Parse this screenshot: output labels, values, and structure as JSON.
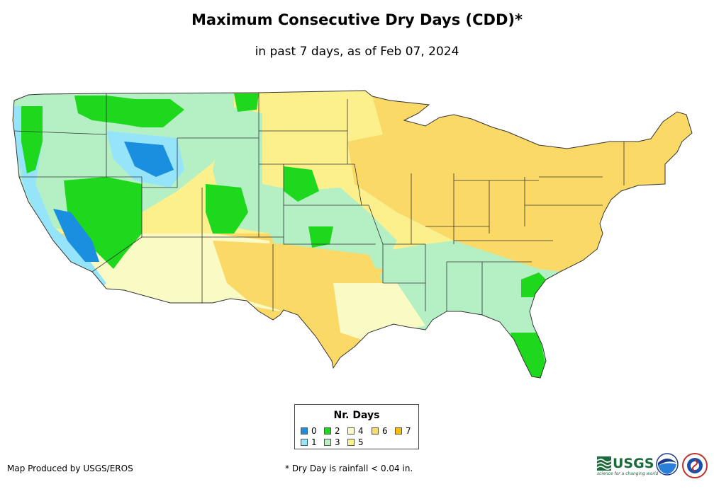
{
  "title": "Maximum Consecutive Dry Days (CDD)*",
  "subtitle": "in past 7 days, as of Feb 07, 2024",
  "legend": {
    "title": "Nr. Days",
    "items": [
      {
        "label": "0",
        "color": "#1a8fe0"
      },
      {
        "label": "1",
        "color": "#96e4fa"
      },
      {
        "label": "2",
        "color": "#1dd81d"
      },
      {
        "label": "3",
        "color": "#b4f0c4"
      },
      {
        "label": "4",
        "color": "#fafac4"
      },
      {
        "label": "5",
        "color": "#fcf08c"
      },
      {
        "label": "6",
        "color": "#fad966"
      },
      {
        "label": "7",
        "color": "#f5c000"
      }
    ]
  },
  "credit": "Map Produced by USGS/EROS",
  "footnote": "* Dry Day is rainfall < 0.04 in.",
  "logos": {
    "usgs": "USGS",
    "usgs_tagline": "science for a changing world",
    "noaa": "noaa",
    "nws": "NATIONAL WEATHER SERVICE"
  },
  "map_regions": [
    {
      "name": "east-northeast",
      "days": "6"
    },
    {
      "name": "plains-west",
      "days": "5"
    },
    {
      "name": "southern-plains",
      "days": "6"
    },
    {
      "name": "pacific-coast",
      "days": "1"
    },
    {
      "name": "great-basin",
      "days": "2"
    },
    {
      "name": "southwest",
      "days": "4"
    },
    {
      "name": "southeast",
      "days": "3"
    },
    {
      "name": "florida",
      "days": "2"
    }
  ]
}
